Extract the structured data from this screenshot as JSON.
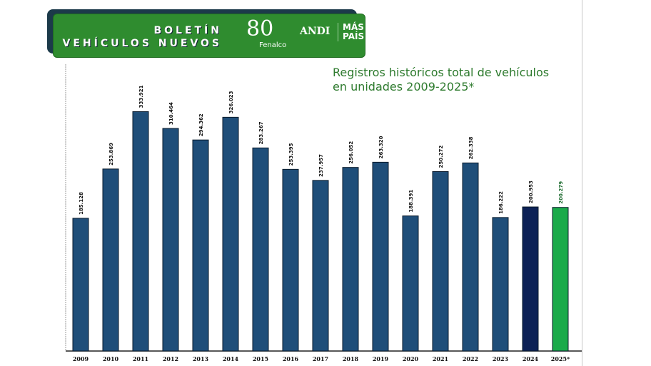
{
  "header": {
    "line1": "BOLETÍN",
    "line2": "VEHÍCULOS NUEVOS",
    "logo_fenalco": "80 Años Fenalco",
    "logo_andi": "ANDI",
    "logo_mas_1": "MÁS",
    "logo_mas_2": "PAÍS"
  },
  "chart_data": {
    "type": "bar",
    "title_line1": "Registros históricos total de vehículos",
    "title_line2": "en unidades 2009-2025*",
    "categories": [
      "2009",
      "2010",
      "2011",
      "2012",
      "2013",
      "2014",
      "2015",
      "2016",
      "2017",
      "2018",
      "2019",
      "2020",
      "2021",
      "2022",
      "2023",
      "2024",
      "2025*"
    ],
    "values": [
      185128,
      253869,
      333921,
      310464,
      294362,
      326023,
      283267,
      253395,
      237957,
      256052,
      263320,
      188391,
      250272,
      262338,
      186222,
      200953,
      200279
    ],
    "labels": [
      "185.128",
      "253.869",
      "333.921",
      "310.464",
      "294.362",
      "326.023",
      "283.267",
      "253.395",
      "237.957",
      "256.052",
      "263.320",
      "188.391",
      "250.272",
      "262.338",
      "186.222",
      "200.953",
      "200.279"
    ],
    "colors": {
      "default": "#1f4e79",
      "2024": "#0c2156",
      "2025*": "#1aaa4a",
      "label_2025": "#1d6b2f"
    },
    "ylim": [
      0,
      400000
    ],
    "xlabel": "",
    "ylabel": "",
    "grid": false
  }
}
